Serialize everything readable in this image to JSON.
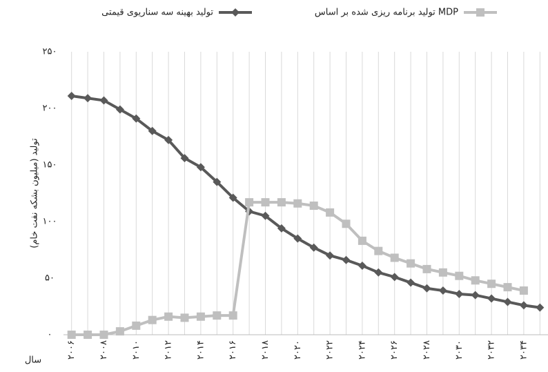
{
  "chart_data": {
    "type": "line",
    "y_label": "تولید (میلیون بشکه نفت خام)",
    "x_label": "سال",
    "categories": [
      "۲۰۰۶",
      null,
      "۲۰۰۸",
      null,
      "۲۰۱۰",
      null,
      "۲۰۱۲",
      null,
      "۲۰۱۴",
      null,
      "۲۰۱۶",
      null,
      "۲۰۱۸",
      null,
      "۲۰۲۰",
      null,
      "۲۰۲۲",
      null,
      "۲۰۲۴",
      null,
      "۲۰۲۶",
      null,
      "۲۰۲۸",
      null,
      "۲۰۳۰",
      null,
      "۲۰۳۲",
      null,
      "۲۰۳۴",
      null
    ],
    "series": [
      {
        "name": "تولید بهینه سه سناریوی قیمتی",
        "color": "#595959",
        "marker": "diamond",
        "values": [
          211,
          209,
          207,
          199,
          191,
          180,
          172,
          156,
          148,
          135,
          121,
          109,
          105,
          94,
          85,
          77,
          70,
          66,
          61,
          55,
          51,
          46,
          41,
          39,
          36,
          35,
          32,
          29,
          26,
          24
        ]
      },
      {
        "name": "تولید برنامه ریزی شده بر اساس MDP",
        "color": "#bfbfbf",
        "marker": "square",
        "values": [
          0,
          0,
          0,
          3,
          8,
          13,
          16,
          15,
          16,
          17,
          17,
          117,
          117,
          117,
          116,
          114,
          108,
          98,
          83,
          74,
          68,
          63,
          58,
          55,
          52,
          48,
          45,
          42,
          39,
          null
        ]
      }
    ],
    "ylim": [
      0,
      250
    ],
    "yticks": [
      {
        "value": 0,
        "label": "٠"
      },
      {
        "value": 50,
        "label": "۵۰"
      },
      {
        "value": 100,
        "label": "۱۰۰"
      },
      {
        "value": 150,
        "label": "۱۵۰"
      },
      {
        "value": 200,
        "label": "۲۰۰"
      },
      {
        "value": 250,
        "label": "۲۵۰"
      }
    ],
    "grid": true
  }
}
